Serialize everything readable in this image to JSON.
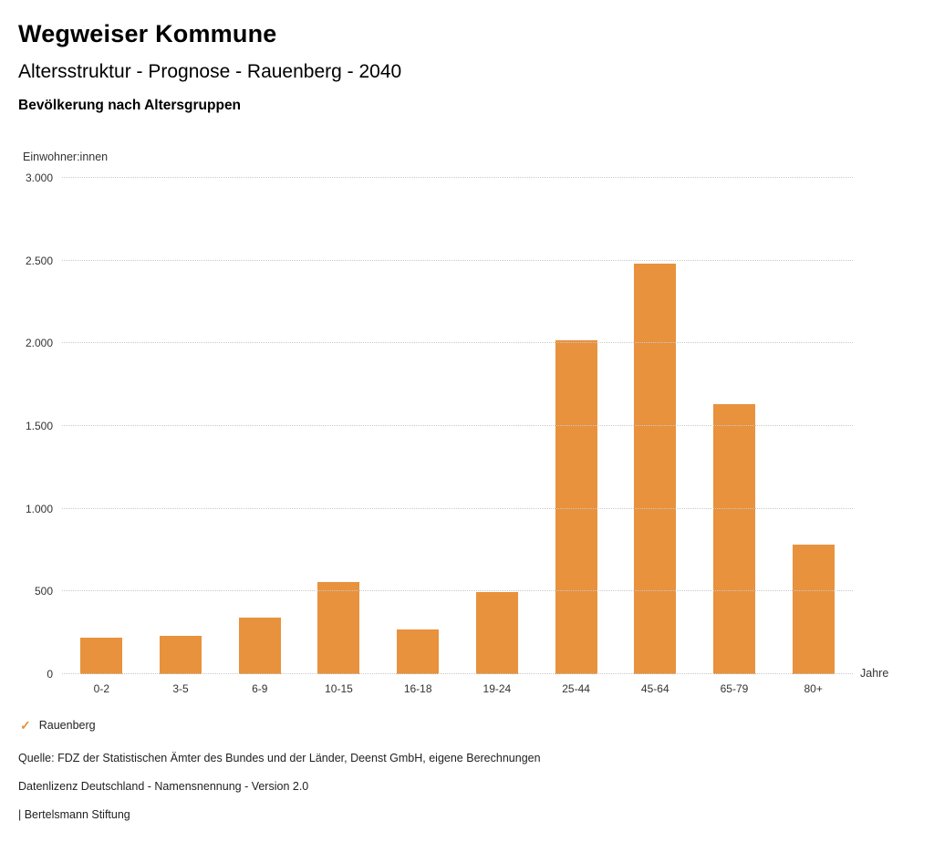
{
  "header": {
    "title": "Wegweiser Kommune",
    "subtitle": "Altersstruktur - Prognose - Rauenberg - 2040",
    "chart_title": "Bevölkerung nach Altersgruppen"
  },
  "chart_data": {
    "type": "bar",
    "title": "Bevölkerung nach Altersgruppen",
    "ylabel": "Einwohner:innen",
    "xlabel": "Jahre",
    "categories": [
      "0-2",
      "3-5",
      "6-9",
      "10-15",
      "16-18",
      "19-24",
      "25-44",
      "45-64",
      "65-79",
      "80+"
    ],
    "values": [
      220,
      230,
      340,
      555,
      270,
      495,
      2020,
      2480,
      1630,
      785
    ],
    "series_name": "Rauenberg",
    "ylim": [
      0,
      3000
    ],
    "ytick_step": 500,
    "ytick_labels": [
      "0",
      "500",
      "1.000",
      "1.500",
      "2.000",
      "2.500",
      "3.000"
    ],
    "grid": "horizontal-dotted",
    "legend_position": "bottom-left",
    "bar_color": "#e8923d"
  },
  "legend": {
    "label": "Rauenberg",
    "check_color": "#e8923d",
    "check_icon": "✓"
  },
  "footer": {
    "line1": "Quelle: FDZ der Statistischen Ämter des Bundes und der Länder, Deenst GmbH, eigene Berechnungen",
    "line2": "Datenlizenz Deutschland - Namensnennung - Version 2.0",
    "line3": "| Bertelsmann Stiftung"
  }
}
